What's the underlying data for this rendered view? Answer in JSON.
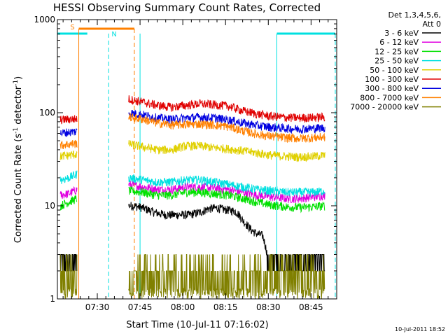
{
  "chart_data": {
    "type": "line",
    "title": "HESSI Observing Summary Count Rates, Corrected",
    "xlabel": "Start Time (10-Jul-11 07:16:02)",
    "ylabel_main": "Corrected Count Rate (s",
    "ylabel_sup1": "-1",
    "ylabel_mid": " detector",
    "ylabel_sup2": "-1",
    "ylabel_end": ")",
    "yscale": "log",
    "ylim": [
      1,
      1000
    ],
    "xlim_minutes": [
      0,
      98
    ],
    "x_tick_labels": [
      "07:30",
      "07:45",
      "08:00",
      "08:15",
      "08:30",
      "08:45"
    ],
    "x_tick_minutes": [
      14,
      29,
      44,
      59,
      74,
      89
    ],
    "y_tick_labels": [
      "1",
      "10",
      "100",
      "1000"
    ],
    "y_tick_values": [
      1,
      10,
      100,
      1000
    ],
    "legend_header": [
      "Det 1,3,4,5,6,",
      "Att 0"
    ],
    "legend_position": "right",
    "footer": "10-Jul-2011 18:52",
    "annotations": [
      {
        "label": "S",
        "color": "#ff8000"
      },
      {
        "label": "N",
        "color": "#00e0e0"
      }
    ],
    "series": [
      {
        "name": "3 - 6 keV",
        "color": "#000000",
        "x": [
          1,
          4,
          6,
          7,
          25,
          27,
          30,
          34,
          38,
          42,
          46,
          50,
          53,
          56,
          58,
          60,
          62,
          63,
          64,
          65,
          66,
          67,
          68,
          70,
          72,
          74,
          78,
          82,
          86,
          90,
          94
        ],
        "y": [
          3.2,
          3.5,
          3.3,
          3.4,
          10,
          10,
          9.5,
          8.5,
          8,
          8,
          8,
          8.5,
          9.3,
          9.5,
          9.2,
          9,
          8.8,
          8.5,
          7.8,
          7,
          6.5,
          6,
          5.5,
          5,
          4.8,
          2.6,
          2.6,
          2.6,
          2.6,
          2.6,
          2.6
        ]
      },
      {
        "name": "6 - 12 keV",
        "color": "#e000e0",
        "x": [
          1,
          4,
          7,
          25,
          30,
          35,
          40,
          45,
          50,
          55,
          60,
          65,
          70,
          75,
          80,
          85,
          90,
          94
        ],
        "y": [
          13,
          13.5,
          15,
          17,
          16,
          15,
          15,
          16,
          16,
          15.5,
          15,
          14,
          13,
          12.5,
          12,
          12,
          12.5,
          13
        ]
      },
      {
        "name": "12 - 25 keV",
        "color": "#00e000",
        "x": [
          1,
          4,
          7,
          25,
          30,
          35,
          40,
          45,
          50,
          55,
          60,
          65,
          70,
          75,
          80,
          85,
          90,
          94
        ],
        "y": [
          10,
          11,
          12,
          14.5,
          14,
          13,
          13,
          14,
          14,
          13.5,
          13,
          12,
          11,
          10.2,
          9.8,
          9.6,
          9.8,
          10
        ]
      },
      {
        "name": "25 - 50 keV",
        "color": "#00e0e0",
        "x": [
          1,
          4,
          7,
          25,
          30,
          35,
          40,
          45,
          50,
          55,
          60,
          65,
          70,
          75,
          80,
          85,
          90,
          94
        ],
        "y": [
          19,
          20,
          22,
          20,
          19,
          18,
          18,
          19,
          19,
          18,
          17,
          16,
          15,
          14.5,
          14,
          14,
          14,
          14.5
        ]
      },
      {
        "name": "50 - 100 keV",
        "color": "#e0d000",
        "x": [
          1,
          4,
          7,
          25,
          30,
          35,
          40,
          45,
          50,
          55,
          60,
          65,
          70,
          75,
          80,
          85,
          90,
          94
        ],
        "y": [
          34,
          35,
          36,
          46,
          43,
          40,
          40,
          44,
          44,
          42,
          41,
          39,
          37,
          35,
          34,
          33.5,
          34,
          35
        ]
      },
      {
        "name": "100 - 300 keV",
        "color": "#e00000",
        "x": [
          1,
          4,
          7,
          25,
          30,
          35,
          40,
          45,
          50,
          55,
          60,
          65,
          70,
          75,
          80,
          85,
          90,
          94
        ],
        "y": [
          84,
          85,
          86,
          140,
          130,
          120,
          115,
          120,
          125,
          122,
          118,
          105,
          97,
          92,
          89,
          88,
          89,
          90
        ]
      },
      {
        "name": "300 - 800 keV",
        "color": "#0000e0",
        "x": [
          1,
          4,
          7,
          25,
          30,
          35,
          40,
          45,
          50,
          55,
          60,
          65,
          70,
          75,
          80,
          85,
          90,
          94
        ],
        "y": [
          60,
          62,
          63,
          100,
          95,
          88,
          85,
          88,
          90,
          88,
          84,
          78,
          73,
          70,
          68,
          67,
          68,
          69
        ]
      },
      {
        "name": "800 - 7000 keV",
        "color": "#ff8000",
        "x": [
          1,
          4,
          7,
          25,
          30,
          35,
          40,
          45,
          50,
          55,
          60,
          65,
          70,
          75,
          80,
          85,
          90,
          94
        ],
        "y": [
          45,
          46,
          47,
          90,
          85,
          78,
          74,
          75,
          76,
          74,
          71,
          64,
          59,
          56,
          54,
          53,
          54,
          55
        ]
      },
      {
        "name": "7000 - 20000 keV",
        "color": "#808000",
        "x": [
          1,
          4,
          7,
          25,
          30,
          35,
          40,
          45,
          50,
          55,
          60,
          65,
          70,
          75,
          80,
          85,
          90,
          94
        ],
        "y": [
          2,
          2,
          2,
          2.2,
          2,
          2.2,
          2,
          2,
          2.5,
          2.8,
          2.5,
          2.2,
          2,
          2,
          2,
          2,
          2,
          2
        ]
      }
    ]
  }
}
